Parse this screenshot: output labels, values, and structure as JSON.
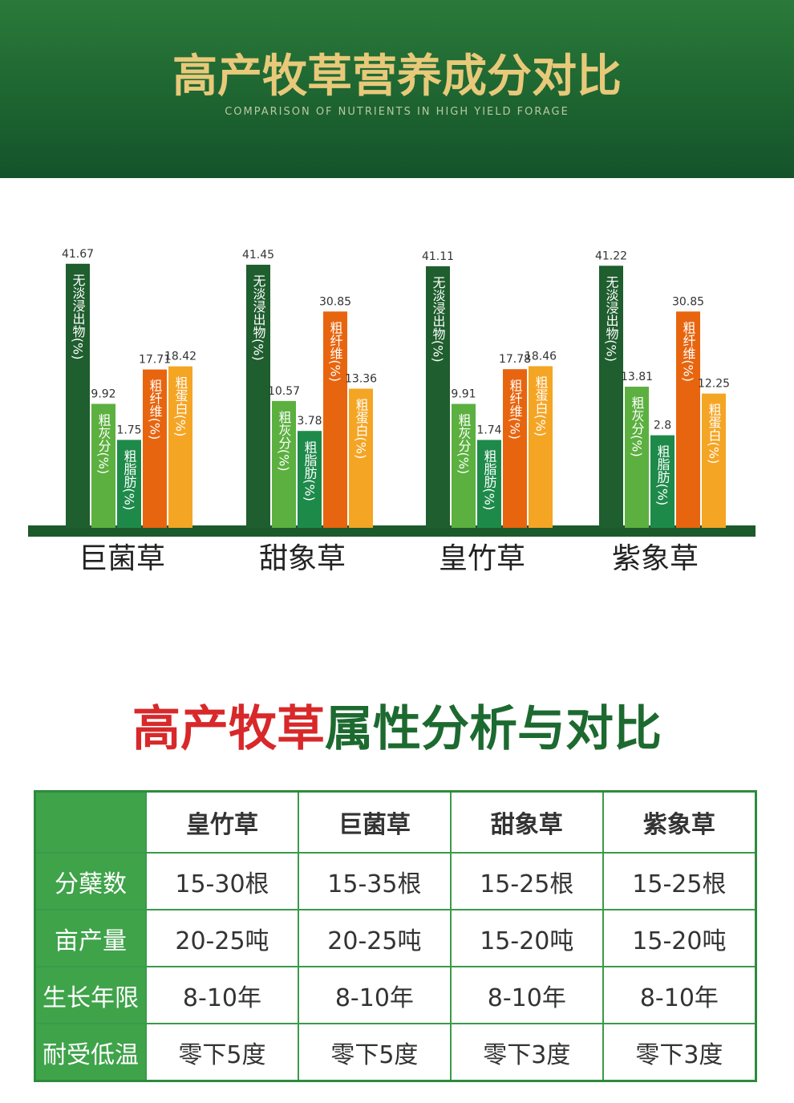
{
  "header": {
    "title": "高产牧草营养成分对比",
    "subtitle": "COMPARISON OF NUTRIENTS IN HIGH YIELD FORAGE"
  },
  "chart_data": {
    "type": "bar",
    "categories": [
      "巨菌草",
      "甜象草",
      "皇竹草",
      "紫象草"
    ],
    "series": [
      {
        "name": "无淡浸出物(%)",
        "color": "#1f5e2e",
        "values": [
          41.67,
          41.45,
          41.11,
          41.22
        ]
      },
      {
        "name": "粗灰分(%)",
        "color": "#5cb040",
        "values": [
          9.92,
          10.57,
          9.91,
          13.81
        ]
      },
      {
        "name": "粗脂肪(%)",
        "color": "#1e8a4a",
        "values": [
          1.75,
          3.78,
          1.74,
          2.8
        ]
      },
      {
        "name": "粗纤维(%)",
        "color": "#e8650f",
        "values": [
          17.71,
          30.85,
          17.78,
          30.85
        ]
      },
      {
        "name": "粗蛋白(%)",
        "color": "#f5a524",
        "values": [
          18.42,
          13.36,
          18.46,
          12.25
        ]
      }
    ]
  },
  "section2": {
    "title_red": "高产牧草",
    "title_green": "属性分析与对比"
  },
  "table": {
    "columns": [
      "皇竹草",
      "巨菌草",
      "甜象草",
      "紫象草"
    ],
    "rows": [
      {
        "label": "分蘖数",
        "cells": [
          "15-30根",
          "15-35根",
          "15-25根",
          "15-25根"
        ]
      },
      {
        "label": "亩产量",
        "cells": [
          "20-25吨",
          "20-25吨",
          "15-20吨",
          "15-20吨"
        ]
      },
      {
        "label": "生长年限",
        "cells": [
          "8-10年",
          "8-10年",
          "8-10年",
          "8-10年"
        ]
      },
      {
        "label": "耐受低温",
        "cells": [
          "零下5度",
          "零下5度",
          "零下3度",
          "零下3度"
        ]
      }
    ]
  }
}
